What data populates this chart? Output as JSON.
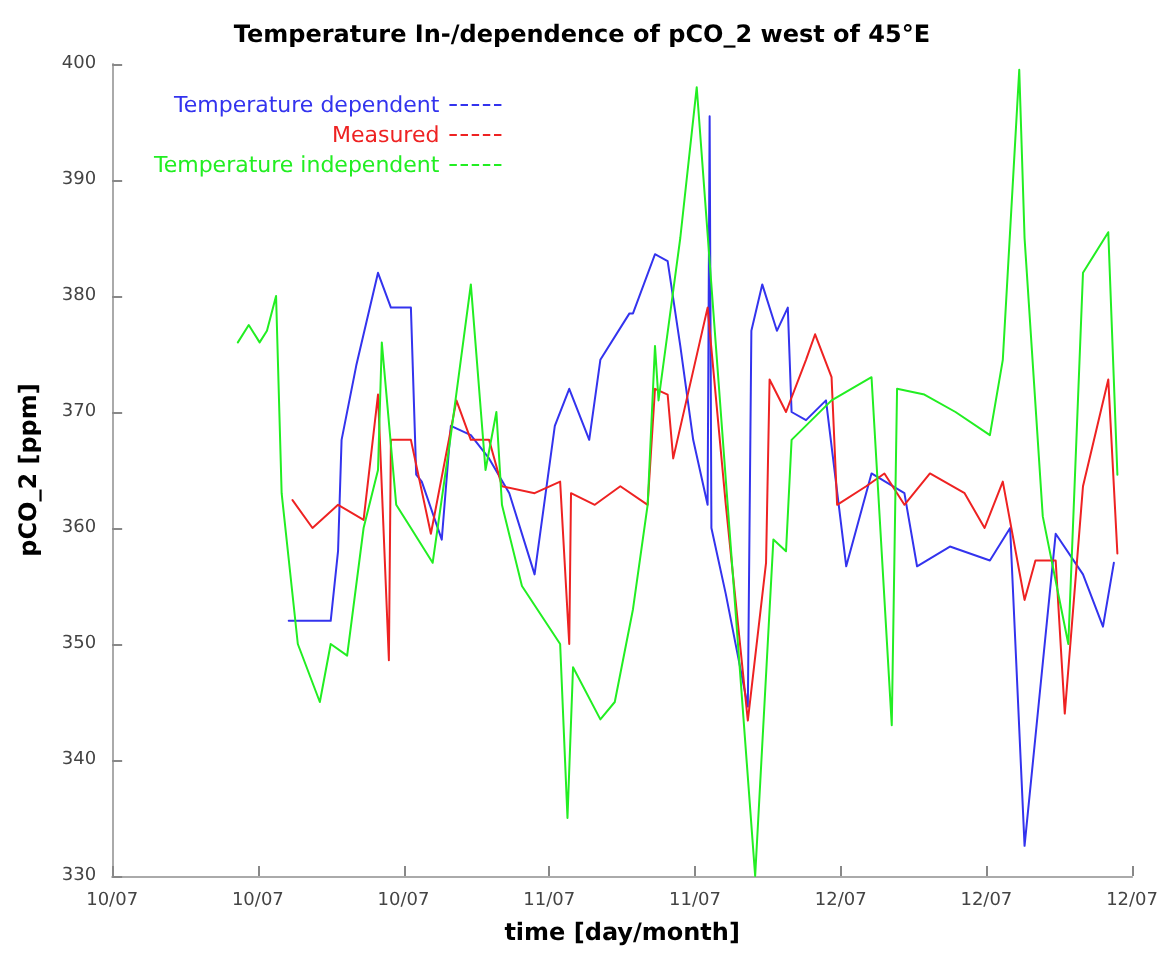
{
  "chart_data": {
    "type": "line",
    "title": "Temperature In-/dependence of pCO_2 west of 45°E",
    "xlabel": "time [day/month]",
    "ylabel": "pCO_2 [ppm]",
    "xlim": [
      "--07-10T00:00",
      "--07-12T19:12"
    ],
    "xticks": [
      {
        "value": "--07-10T00:00",
        "label": "10/07"
      },
      {
        "value": "--07-10T09:36",
        "label": "10/07"
      },
      {
        "value": "--07-10T19:12",
        "label": "10/07"
      },
      {
        "value": "--07-11T04:48",
        "label": "11/07"
      },
      {
        "value": "--07-11T14:24",
        "label": "11/07"
      },
      {
        "value": "--07-12T00:00",
        "label": "12/07"
      },
      {
        "value": "--07-12T09:36",
        "label": "12/07"
      },
      {
        "value": "--07-12T19:12",
        "label": "12/07"
      }
    ],
    "ylim": [
      330,
      400
    ],
    "yticks": [
      330,
      340,
      350,
      360,
      370,
      380,
      390,
      400
    ],
    "grid": false,
    "legend": "top left",
    "marker": "none",
    "line_style": "solid",
    "series": [
      {
        "name": "Temperature dependent",
        "color": "#3333ee",
        "x": [
          "--07-10T11:38",
          "--07-10T14:24",
          "--07-10T14:53",
          "--07-10T15:07",
          "--07-10T16:05",
          "--07-10T17:31",
          "--07-10T18:22",
          "--07-10T19:41",
          "--07-10T20:02",
          "--07-10T20:24",
          "--07-10T21:43",
          "--07-10T22:19",
          "--07-10T23:38",
          "--07-11T00:50",
          "--07-11T02:10",
          "--07-11T03:50",
          "--07-11T05:10",
          "--07-11T06:07",
          "--07-11T07:26",
          "--07-11T08:10",
          "--07-11T10:05",
          "--07-11T10:19",
          "--07-11T11:46",
          "--07-11T12:36",
          "--07-11T13:26",
          "--07-11T14:17",
          "--07-11T15:14",
          "--07-11T15:22",
          "--07-11T15:29",
          "--07-11T16:26",
          "--07-11T17:53",
          "--07-11T18:07",
          "--07-11T18:50",
          "--07-11T19:48",
          "--07-11T20:31",
          "--07-11T20:46",
          "--07-11T21:43",
          "--07-11T23:02",
          "--07-12T00:22",
          "--07-12T02:02",
          "--07-12T04:12",
          "--07-12T05:02",
          "--07-12T07:12",
          "--07-12T09:50",
          "--07-12T11:10",
          "--07-12T12:07",
          "--07-12T14:10",
          "--07-12T15:58",
          "--07-12T17:17",
          "--07-12T18:00"
        ],
        "values": [
          352,
          352,
          358,
          367.6,
          374,
          382,
          379,
          379,
          364.6,
          364,
          359,
          368.8,
          368,
          366,
          363,
          356,
          368.8,
          372,
          367.6,
          374.5,
          378.5,
          378.5,
          383.6,
          383,
          375.7,
          367.6,
          362,
          395.5,
          360,
          354.3,
          344.6,
          377,
          381,
          377,
          379,
          370,
          369.3,
          371,
          356.7,
          364.7,
          363,
          356.7,
          358.4,
          357.2,
          360,
          332.6,
          359.5,
          356,
          351.5,
          357
        ]
      },
      {
        "name": "Measured",
        "color": "#ee2222",
        "x": [
          "--07-10T11:53",
          "--07-10T13:12",
          "--07-10T14:53",
          "--07-10T16:34",
          "--07-10T17:31",
          "--07-10T18:14",
          "--07-10T18:22",
          "--07-10T19:41",
          "--07-10T21:00",
          "--07-10T22:41",
          "--07-10T23:38",
          "--07-11T00:50",
          "--07-11T01:41",
          "--07-11T03:50",
          "--07-11T05:31",
          "--07-11T06:07",
          "--07-11T06:14",
          "--07-11T07:48",
          "--07-11T09:29",
          "--07-11T11:17",
          "--07-11T11:46",
          "--07-11T12:36",
          "--07-11T12:58",
          "--07-11T15:14",
          "--07-11T16:26",
          "--07-11T17:53",
          "--07-11T19:05",
          "--07-11T19:19",
          "--07-11T20:24",
          "--07-11T21:43",
          "--07-11T22:19",
          "--07-11T23:24",
          "--07-11T23:46",
          "--07-12T01:41",
          "--07-12T02:53",
          "--07-12T04:12",
          "--07-12T05:53",
          "--07-12T08:10",
          "--07-12T09:29",
          "--07-12T10:41",
          "--07-12T12:07",
          "--07-12T12:50",
          "--07-12T14:10",
          "--07-12T14:46",
          "--07-12T15:58",
          "--07-12T17:38",
          "--07-12T18:14"
        ],
        "values": [
          362.4,
          360,
          362,
          360.7,
          371.5,
          348.6,
          367.6,
          367.6,
          359.5,
          371,
          367.6,
          367.6,
          363.6,
          363,
          364,
          350,
          363,
          362,
          363.6,
          362,
          372,
          371.5,
          366,
          379,
          362,
          343.4,
          357,
          372.8,
          370,
          374.5,
          376.7,
          373,
          362,
          363.6,
          364.7,
          362,
          364.7,
          363,
          360,
          364,
          353.8,
          357.2,
          357.2,
          344,
          363.6,
          372.8,
          357.8
        ]
      },
      {
        "name": "Temperature independent",
        "color": "#22ee22",
        "x": [
          "--07-10T08:17",
          "--07-10T09:00",
          "--07-10T09:43",
          "--07-10T10:12",
          "--07-10T10:48",
          "--07-10T11:10",
          "--07-10T12:14",
          "--07-10T13:41",
          "--07-10T14:24",
          "--07-10T15:29",
          "--07-10T16:34",
          "--07-10T17:31",
          "--07-10T17:46",
          "--07-10T18:43",
          "--07-10T19:41",
          "--07-10T21:07",
          "--07-10T22:19",
          "--07-10T23:38",
          "--07-11T00:36",
          "--07-11T01:19",
          "--07-11T01:41",
          "--07-11T03:00",
          "--07-11T05:31",
          "--07-11T06:00",
          "--07-11T06:22",
          "--07-11T08:10",
          "--07-11T09:07",
          "--07-11T10:19",
          "--07-11T11:17",
          "--07-11T11:46",
          "--07-11T12:00",
          "--07-11T13:26",
          "--07-11T14:31",
          "--07-11T18:22",
          "--07-11T19:34",
          "--07-11T20:24",
          "--07-11T20:46",
          "--07-11T23:24",
          "--07-12T02:02",
          "--07-12T03:22",
          "--07-12T03:43",
          "--07-12T05:31",
          "--07-12T07:34",
          "--07-12T09:50",
          "--07-12T10:41",
          "--07-12T11:46",
          "--07-12T12:07",
          "--07-12T13:19",
          "--07-12T15:00",
          "--07-12T15:58",
          "--07-12T17:38",
          "--07-12T18:14"
        ],
        "values": [
          376,
          377.5,
          376,
          377,
          380,
          363,
          350,
          345,
          350,
          349,
          360,
          365,
          376,
          362,
          360,
          357,
          368,
          381,
          365,
          370,
          362,
          355,
          350,
          335,
          348,
          343.5,
          345,
          353,
          362,
          375.7,
          371,
          385,
          398,
          330,
          359,
          358,
          367.6,
          371,
          373,
          343,
          372,
          371.5,
          370,
          368,
          374.5,
          399.5,
          385,
          361,
          350,
          382,
          385.5,
          364.6
        ]
      }
    ]
  }
}
